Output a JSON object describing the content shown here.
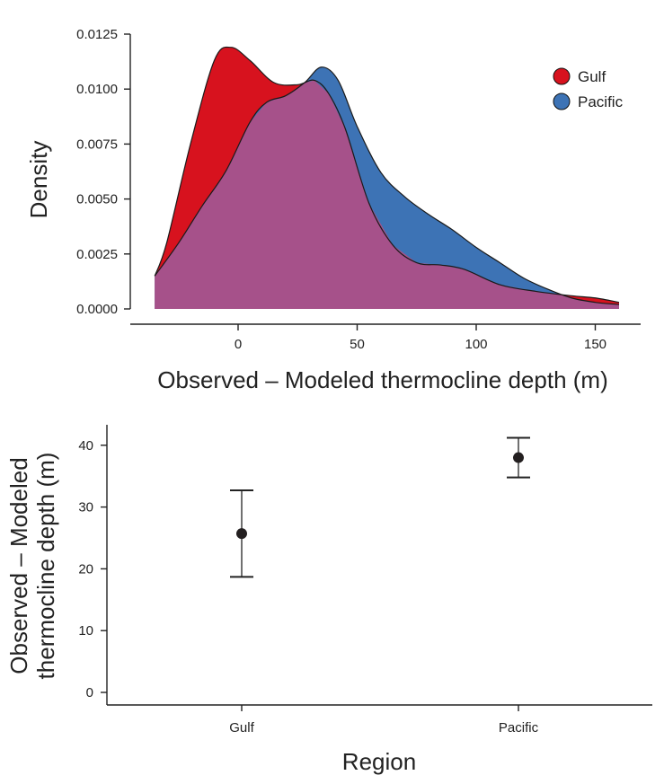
{
  "chart_data": [
    {
      "type": "area",
      "subtype": "density",
      "xlabel": "Observed – Modeled thermocline depth (m)",
      "ylabel": "Density",
      "xlim": [
        -45,
        172
      ],
      "ylim": [
        0,
        0.0125
      ],
      "xticks": [
        0,
        50,
        100,
        150
      ],
      "xtick_labels": [
        "0",
        "50",
        "100",
        "150"
      ],
      "yticks": [
        0,
        0.0025,
        0.005,
        0.0075,
        0.01,
        0.0125
      ],
      "ytick_labels": [
        "0.0000",
        "0.0025",
        "0.0050",
        "0.0075",
        "0.0100",
        "0.0125"
      ],
      "legend_position": "top-right",
      "overlap_color": "#a6518a",
      "series": [
        {
          "name": "Gulf",
          "color": "#d7121e",
          "x": [
            -35,
            -30,
            -20,
            -10,
            -3,
            5,
            15,
            25,
            32,
            38,
            45,
            55,
            65,
            75,
            85,
            95,
            110,
            125,
            140,
            150,
            160
          ],
          "y": [
            0.0015,
            0.003,
            0.0075,
            0.0113,
            0.0119,
            0.0113,
            0.0103,
            0.0102,
            0.0104,
            0.0098,
            0.0082,
            0.0048,
            0.0029,
            0.0021,
            0.002,
            0.0018,
            0.0011,
            0.0008,
            0.0006,
            0.0005,
            0.0003
          ]
        },
        {
          "name": "Pacific",
          "color": "#3d73b5",
          "x": [
            -35,
            -25,
            -15,
            -5,
            5,
            12,
            20,
            28,
            35,
            42,
            50,
            60,
            70,
            80,
            90,
            100,
            110,
            120,
            130,
            140,
            150,
            160
          ],
          "y": [
            0.0015,
            0.003,
            0.0047,
            0.0063,
            0.0085,
            0.0094,
            0.0097,
            0.0103,
            0.011,
            0.0104,
            0.0083,
            0.0062,
            0.0051,
            0.0043,
            0.0036,
            0.0028,
            0.0021,
            0.0014,
            0.0009,
            0.0005,
            0.0003,
            0.0002
          ]
        }
      ]
    },
    {
      "type": "scatter",
      "subtype": "errorbar",
      "xlabel": "Region",
      "ylabel_lines": [
        "Observed – Modeled",
        "thermocline depth (m)"
      ],
      "categories": [
        "Gulf",
        "Pacific"
      ],
      "ylim": [
        -2,
        45
      ],
      "yticks": [
        0,
        10,
        20,
        30,
        40
      ],
      "ytick_labels": [
        "0",
        "10",
        "20",
        "30",
        "40"
      ],
      "points": [
        {
          "category": "Gulf",
          "mean": 25.7,
          "lower": 18.7,
          "upper": 32.7
        },
        {
          "category": "Pacific",
          "mean": 38.0,
          "lower": 34.8,
          "upper": 41.2
        }
      ]
    }
  ]
}
